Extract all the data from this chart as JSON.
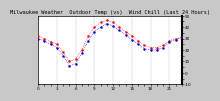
{
  "title": "Milwaukee Weather  Outdoor Temp (vs)  Wind Chill (Last 24 Hours)",
  "bg_color": "#c8c8c8",
  "plot_bg_color": "#ffffff",
  "grid_color": "#888888",
  "temp_color": "#ff0000",
  "windchill_color": "#0000dd",
  "x_values": [
    0,
    1,
    2,
    3,
    4,
    5,
    6,
    7,
    8,
    9,
    10,
    11,
    12,
    13,
    14,
    15,
    16,
    17,
    18,
    19,
    20,
    21,
    22,
    23
  ],
  "temp_values": [
    32,
    30,
    27,
    25,
    18,
    10,
    12,
    20,
    32,
    40,
    44,
    46,
    44,
    40,
    36,
    32,
    28,
    24,
    22,
    22,
    24,
    28,
    30,
    31
  ],
  "windchill_values": [
    30,
    28,
    25,
    22,
    15,
    6,
    8,
    17,
    28,
    36,
    40,
    43,
    41,
    37,
    33,
    29,
    25,
    21,
    20,
    20,
    22,
    27,
    29,
    31
  ],
  "ylim": [
    -10,
    50
  ],
  "yticks": [
    -10,
    -5,
    0,
    5,
    10,
    15,
    20,
    25,
    30,
    35,
    40,
    45,
    50
  ],
  "ytick_labels": [
    "-10",
    "",
    "0",
    "",
    "10",
    "",
    "20",
    "",
    "30",
    "",
    "40",
    "",
    "50"
  ],
  "xlim": [
    0,
    23
  ],
  "vgrid_positions": [
    0,
    3,
    6,
    9,
    12,
    15,
    18,
    21
  ],
  "xtick_positions": [
    0,
    1,
    2,
    3,
    4,
    5,
    6,
    7,
    8,
    9,
    10,
    11,
    12,
    13,
    14,
    15,
    16,
    17,
    18,
    19,
    20,
    21,
    22,
    23
  ],
  "title_fontsize": 3.8,
  "tick_fontsize": 3.0,
  "line_markersize": 1.5,
  "line_linewidth": 0.5
}
